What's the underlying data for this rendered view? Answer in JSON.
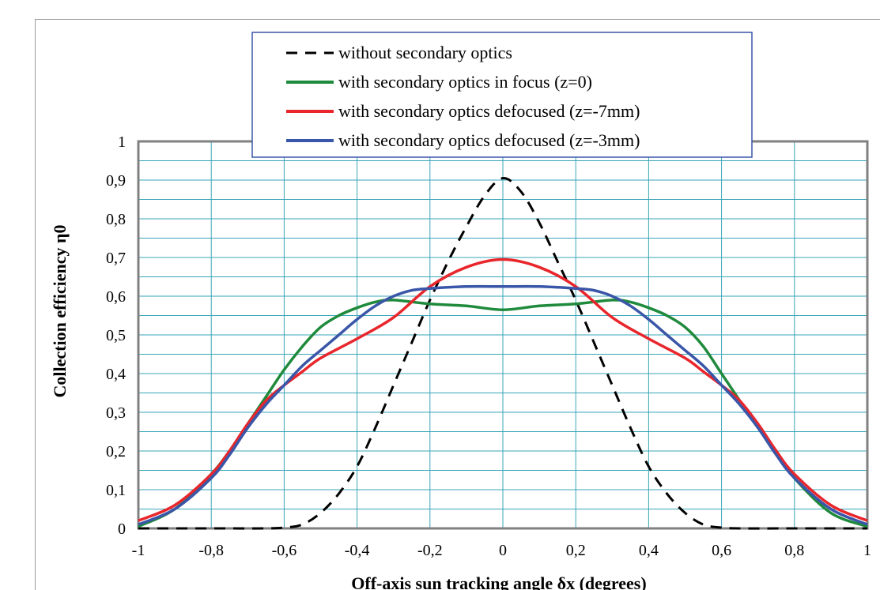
{
  "chart_data": {
    "type": "line",
    "xlabel": "Off-axis sun tracking angle δx (degrees)",
    "ylabel": "Collection efficiency η0",
    "xlim": [
      -1,
      1
    ],
    "ylim": [
      0,
      1
    ],
    "x_ticks": [
      "-1",
      "-0,8",
      "-0,6",
      "-0,4",
      "-0,2",
      "0",
      "0,2",
      "0,4",
      "0,6",
      "0,8",
      "1"
    ],
    "y_ticks": [
      "0",
      "0,1",
      "0,2",
      "0,3",
      "0,4",
      "0,5",
      "0,6",
      "0,7",
      "0,8",
      "0,9",
      "1"
    ],
    "grid": true,
    "legend_position": "top-center",
    "series": [
      {
        "name": "without secondary optics",
        "color": "#000000",
        "dash": true,
        "points": [
          [
            -1,
            0
          ],
          [
            -0.8,
            0
          ],
          [
            -0.65,
            0
          ],
          [
            -0.6,
            0.002
          ],
          [
            -0.55,
            0.01
          ],
          [
            -0.5,
            0.04
          ],
          [
            -0.45,
            0.09
          ],
          [
            -0.4,
            0.16
          ],
          [
            -0.35,
            0.26
          ],
          [
            -0.3,
            0.37
          ],
          [
            -0.25,
            0.48
          ],
          [
            -0.2,
            0.59
          ],
          [
            -0.15,
            0.69
          ],
          [
            -0.1,
            0.78
          ],
          [
            -0.05,
            0.86
          ],
          [
            0,
            0.905
          ],
          [
            0.05,
            0.87
          ],
          [
            0.1,
            0.79
          ],
          [
            0.15,
            0.69
          ],
          [
            0.2,
            0.59
          ],
          [
            0.25,
            0.48
          ],
          [
            0.3,
            0.37
          ],
          [
            0.35,
            0.26
          ],
          [
            0.4,
            0.16
          ],
          [
            0.45,
            0.09
          ],
          [
            0.5,
            0.04
          ],
          [
            0.55,
            0.01
          ],
          [
            0.6,
            0.002
          ],
          [
            0.65,
            0
          ],
          [
            0.8,
            0
          ],
          [
            1,
            0
          ]
        ]
      },
      {
        "name": "with secondary optics in focus (z=0)",
        "color": "#1f8a3c",
        "dash": false,
        "points": [
          [
            -1,
            0.005
          ],
          [
            -0.9,
            0.05
          ],
          [
            -0.8,
            0.14
          ],
          [
            -0.75,
            0.2
          ],
          [
            -0.7,
            0.27
          ],
          [
            -0.65,
            0.34
          ],
          [
            -0.6,
            0.41
          ],
          [
            -0.55,
            0.47
          ],
          [
            -0.5,
            0.52
          ],
          [
            -0.45,
            0.55
          ],
          [
            -0.4,
            0.57
          ],
          [
            -0.35,
            0.585
          ],
          [
            -0.3,
            0.59
          ],
          [
            -0.2,
            0.58
          ],
          [
            -0.1,
            0.575
          ],
          [
            0,
            0.565
          ],
          [
            0.1,
            0.575
          ],
          [
            0.2,
            0.58
          ],
          [
            0.3,
            0.59
          ],
          [
            0.35,
            0.585
          ],
          [
            0.4,
            0.57
          ],
          [
            0.45,
            0.55
          ],
          [
            0.5,
            0.52
          ],
          [
            0.55,
            0.47
          ],
          [
            0.6,
            0.4
          ],
          [
            0.65,
            0.33
          ],
          [
            0.7,
            0.26
          ],
          [
            0.75,
            0.2
          ],
          [
            0.8,
            0.13
          ],
          [
            0.9,
            0.04
          ],
          [
            1,
            0.005
          ]
        ]
      },
      {
        "name": "with secondary optics defocused (z=-7mm)",
        "color": "#e8262c",
        "dash": false,
        "points": [
          [
            -1,
            0.02
          ],
          [
            -0.9,
            0.06
          ],
          [
            -0.8,
            0.14
          ],
          [
            -0.75,
            0.2
          ],
          [
            -0.7,
            0.27
          ],
          [
            -0.65,
            0.33
          ],
          [
            -0.6,
            0.37
          ],
          [
            -0.55,
            0.405
          ],
          [
            -0.5,
            0.44
          ],
          [
            -0.4,
            0.49
          ],
          [
            -0.3,
            0.545
          ],
          [
            -0.2,
            0.625
          ],
          [
            -0.1,
            0.675
          ],
          [
            0,
            0.695
          ],
          [
            0.1,
            0.675
          ],
          [
            0.2,
            0.625
          ],
          [
            0.3,
            0.545
          ],
          [
            0.4,
            0.49
          ],
          [
            0.5,
            0.44
          ],
          [
            0.55,
            0.405
          ],
          [
            0.6,
            0.37
          ],
          [
            0.65,
            0.33
          ],
          [
            0.7,
            0.27
          ],
          [
            0.75,
            0.2
          ],
          [
            0.8,
            0.14
          ],
          [
            0.9,
            0.06
          ],
          [
            1,
            0.02
          ]
        ]
      },
      {
        "name": "with secondary optics defocused (z=-3mm)",
        "color": "#3a56a8",
        "dash": false,
        "points": [
          [
            -1,
            0.01
          ],
          [
            -0.9,
            0.05
          ],
          [
            -0.8,
            0.13
          ],
          [
            -0.75,
            0.19
          ],
          [
            -0.7,
            0.26
          ],
          [
            -0.65,
            0.32
          ],
          [
            -0.6,
            0.37
          ],
          [
            -0.55,
            0.42
          ],
          [
            -0.5,
            0.46
          ],
          [
            -0.45,
            0.5
          ],
          [
            -0.4,
            0.54
          ],
          [
            -0.35,
            0.575
          ],
          [
            -0.3,
            0.6
          ],
          [
            -0.25,
            0.615
          ],
          [
            -0.2,
            0.62
          ],
          [
            -0.1,
            0.625
          ],
          [
            0,
            0.625
          ],
          [
            0.1,
            0.625
          ],
          [
            0.2,
            0.62
          ],
          [
            0.25,
            0.615
          ],
          [
            0.3,
            0.6
          ],
          [
            0.35,
            0.575
          ],
          [
            0.4,
            0.54
          ],
          [
            0.45,
            0.5
          ],
          [
            0.5,
            0.46
          ],
          [
            0.55,
            0.42
          ],
          [
            0.6,
            0.37
          ],
          [
            0.65,
            0.32
          ],
          [
            0.7,
            0.26
          ],
          [
            0.75,
            0.19
          ],
          [
            0.8,
            0.13
          ],
          [
            0.9,
            0.05
          ],
          [
            1,
            0.01
          ]
        ]
      }
    ]
  }
}
